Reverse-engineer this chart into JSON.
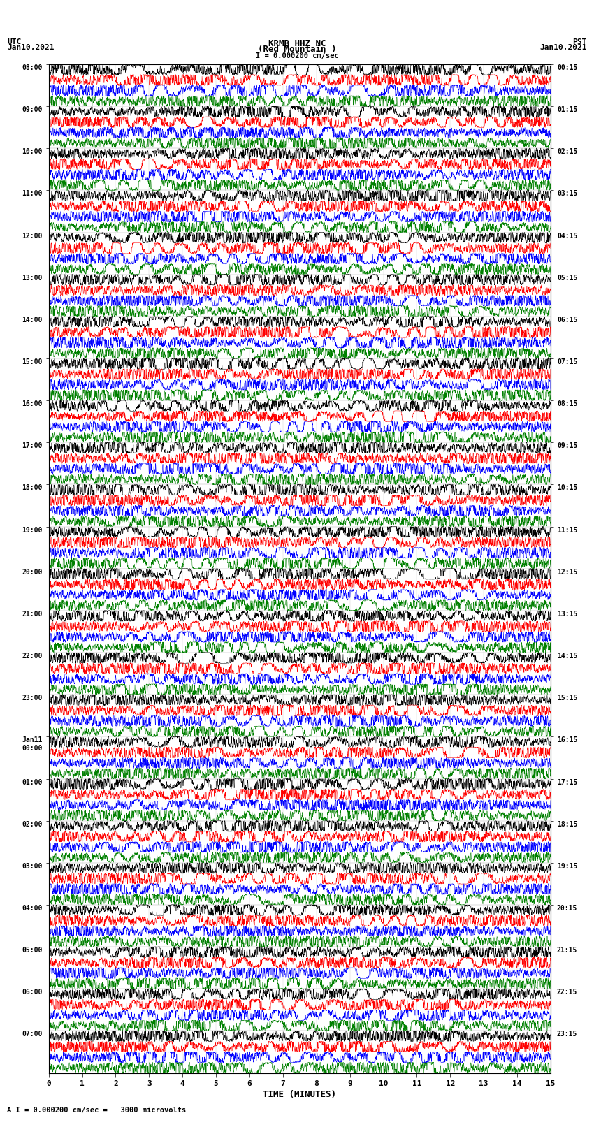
{
  "title_line1": "KRMB HHZ NC",
  "title_line2": "(Red Mountain )",
  "scale_text": "I = 0.000200 cm/sec",
  "bottom_text": "A I = 0.000200 cm/sec =   3000 microvolts",
  "xlabel": "TIME (MINUTES)",
  "utc_times": [
    "08:00",
    "09:00",
    "10:00",
    "11:00",
    "12:00",
    "13:00",
    "14:00",
    "15:00",
    "16:00",
    "17:00",
    "18:00",
    "19:00",
    "20:00",
    "21:00",
    "22:00",
    "23:00",
    "Jan11\n00:00",
    "01:00",
    "02:00",
    "03:00",
    "04:00",
    "05:00",
    "06:00",
    "07:00"
  ],
  "pst_times": [
    "00:15",
    "01:15",
    "02:15",
    "03:15",
    "04:15",
    "05:15",
    "06:15",
    "07:15",
    "08:15",
    "09:15",
    "10:15",
    "11:15",
    "12:15",
    "13:15",
    "14:15",
    "15:15",
    "16:15",
    "17:15",
    "18:15",
    "19:15",
    "20:15",
    "21:15",
    "22:15",
    "23:15"
  ],
  "n_rows": 24,
  "n_traces_per_row": 4,
  "colors": [
    "#000000",
    "#ff0000",
    "#0000ff",
    "#008000"
  ],
  "bg_color": "#ffffff",
  "x_ticks": [
    0,
    1,
    2,
    3,
    4,
    5,
    6,
    7,
    8,
    9,
    10,
    11,
    12,
    13,
    14,
    15
  ],
  "figsize": [
    8.5,
    16.13
  ],
  "pts_per_row": 3000
}
